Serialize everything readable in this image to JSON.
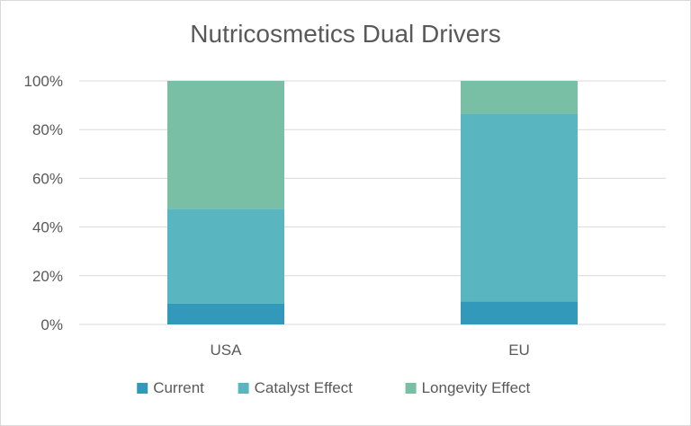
{
  "chart_data": {
    "type": "bar",
    "stacked": true,
    "title": "Nutricosmetics Dual Drivers",
    "categories": [
      "USA",
      "EU"
    ],
    "series": [
      {
        "name": "Current",
        "color": "#3399bb",
        "values": [
          8.5,
          9.5
        ]
      },
      {
        "name": "Catalyst Effect",
        "color": "#59b6c1",
        "values": [
          39,
          77
        ]
      },
      {
        "name": "Longevity Effect",
        "color": "#78bfa5",
        "values": [
          52.5,
          13.5
        ]
      }
    ],
    "ylim": [
      0,
      100
    ],
    "yticks": [
      "0%",
      "20%",
      "40%",
      "60%",
      "80%",
      "100%"
    ],
    "grid": true,
    "legend": "bottom"
  }
}
